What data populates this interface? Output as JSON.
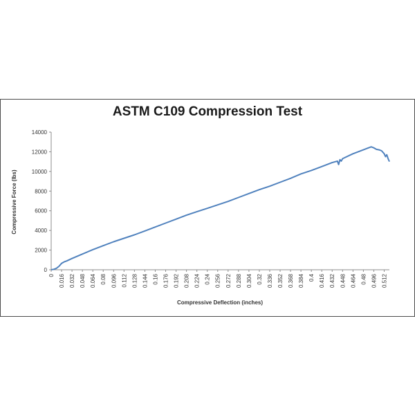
{
  "chart_data": {
    "type": "line",
    "title": "ASTM C109 Compression Test",
    "xlabel": "Compressive Deflection (inches)",
    "ylabel": "Compressive Force (lbs)",
    "ylim": [
      0,
      14000
    ],
    "y_ticks": [
      "0",
      "2000",
      "4000",
      "6000",
      "8000",
      "10000",
      "12000",
      "14000"
    ],
    "x_ticks": [
      "0",
      "0.016",
      "0.032",
      "0.048",
      "0.064",
      "0.08",
      "0.096",
      "0.112",
      "0.128",
      "0.144",
      "0.16",
      "0.176",
      "0.192",
      "0.208",
      "0.224",
      "0.24",
      "0.256",
      "0.272",
      "0.288",
      "0.304",
      "0.32",
      "0.336",
      "0.352",
      "0.368",
      "0.384",
      "0.4",
      "0.416",
      "0.432",
      "0.448",
      "0.464",
      "0.48",
      "0.496",
      "0.512"
    ],
    "grid": false,
    "legend": "none",
    "line_color": "#4f81bd",
    "series": [
      {
        "x": [
          0,
          0.004,
          0.008,
          0.012,
          0.016,
          0.02,
          0.024,
          0.032,
          0.048,
          0.064,
          0.08,
          0.096,
          0.112,
          0.128,
          0.144,
          0.16,
          0.176,
          0.192,
          0.208,
          0.224,
          0.24,
          0.256,
          0.272,
          0.288,
          0.304,
          0.32,
          0.336,
          0.352,
          0.368,
          0.384,
          0.4,
          0.416,
          0.432,
          0.44,
          0.442,
          0.444,
          0.446,
          0.448,
          0.464,
          0.48,
          0.488,
          0.492,
          0.496,
          0.5,
          0.504,
          0.508,
          0.512,
          0.514,
          0.516,
          0.518,
          0.52
        ],
        "y": [
          0,
          50,
          150,
          350,
          650,
          800,
          900,
          1150,
          1600,
          2050,
          2450,
          2850,
          3200,
          3550,
          3950,
          4350,
          4750,
          5150,
          5550,
          5900,
          6250,
          6600,
          6950,
          7350,
          7750,
          8150,
          8500,
          8900,
          9300,
          9750,
          10100,
          10500,
          10900,
          11050,
          10700,
          11200,
          11050,
          11300,
          11800,
          12200,
          12400,
          12500,
          12400,
          12250,
          12200,
          12100,
          11800,
          11500,
          11700,
          11300,
          11000
        ]
      }
    ]
  }
}
